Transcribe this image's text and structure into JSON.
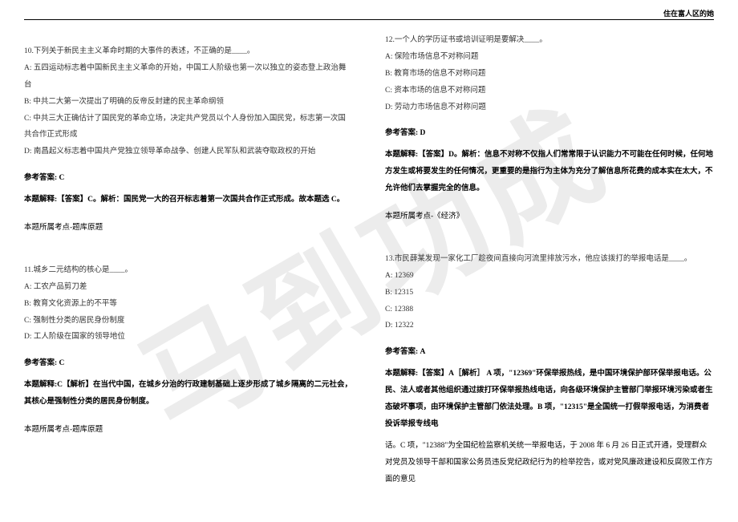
{
  "header": {
    "right_text": "住在富人区的她"
  },
  "watermark": "马到功成",
  "left_column": {
    "q10": {
      "stem": "10.下列关于新民主主义革命时期的大事件的表述，不正确的是____。",
      "options": {
        "a": "A: 五四运动标志着中国新民主主义革命的开始，中国工人阶级也第一次以独立的姿态登上政治舞台",
        "b": "B: 中共二大第一次提出了明确的反帝反封建的民主革命纲领",
        "c": "C: 中共三大正确估计了国民党的革命立场，决定共产党员以个人身份加入国民党，标志第一次国共合作正式形成",
        "d": "D: 南昌起义标志着中国共产党独立领导革命战争、创建人民军队和武装夺取政权的开始"
      },
      "answer_label": "参考答案: C",
      "explanation": "本题解释:【答案】C。解析：国民党一大的召开标志着第一次国共合作正式形成。故本题选 C。",
      "topic": "本题所属考点-题库原题"
    },
    "q11": {
      "stem": "11.城乡二元结构的核心是____。",
      "options": {
        "a": "A: 工农产品剪刀差",
        "b": "B: 教育文化资源上的不平等",
        "c": "C: 强制性分类的居民身份制度",
        "d": "D: 工人阶级在国家的领导地位"
      },
      "answer_label": "参考答案: C",
      "explanation": "本题解释:C【解析】在当代中国，在城乡分治的行政建制基础上逐步形成了城乡隔离的二元社会，其核心是强制性分类的居民身份制度。",
      "topic": "本题所属考点-题库原题"
    }
  },
  "right_column": {
    "q12": {
      "stem": "12.一个人的学历证书或培训证明是要解决____。",
      "options": {
        "a": "A: 保险市场信息不对称问题",
        "b": "B: 教育市场的信息不对称问题",
        "c": "C: 资本市场的信息不对称问题",
        "d": "D: 劳动力市场信息不对称问题"
      },
      "answer_label": "参考答案: D",
      "explanation": "本题解释:【答案】D。解析：信息不对称不仅指人们常常限于认识能力不可能在任何时候，任何地方发生或将要发生的任何情况，更重要的是指行为主体为充分了解信息所花费的成本实在太大，不允许他们去掌握完全的信息。",
      "topic": "本题所属考点-《经济》"
    },
    "q13": {
      "stem": "13.市民薛某发现一家化工厂趁夜间直接向河流里排放污水，他应该拨打的举报电话是____。",
      "options": {
        "a": "A: 12369",
        "b": "B: 12315",
        "c": "C: 12388",
        "d": "D: 12322"
      },
      "answer_label": "参考答案: A",
      "explanation": "本题解释:【答案】A［解析］ A 项，\"12369\"环保举报热线，是中国环境保护部环保举报电话。公民、法人或者其他组织通过拨打环保举报热线电话，向各级环境保护主管部门举报环境污染或者生态破坏事项，由环境保护主管部门依法处理。B 项，\"12315\"是全国统一打假举报电话，为消费者投诉举报专线电",
      "explanation2": "话。C 项，\"12388\"为全国纪检监察机关统一举报电话，于 2008 年 6 月 26 日正式开通，受理群众对党员及领导干部和国家公务员违反党纪政纪行为的检举控告，或对党风廉政建设和反腐败工作方面的意见"
    }
  }
}
